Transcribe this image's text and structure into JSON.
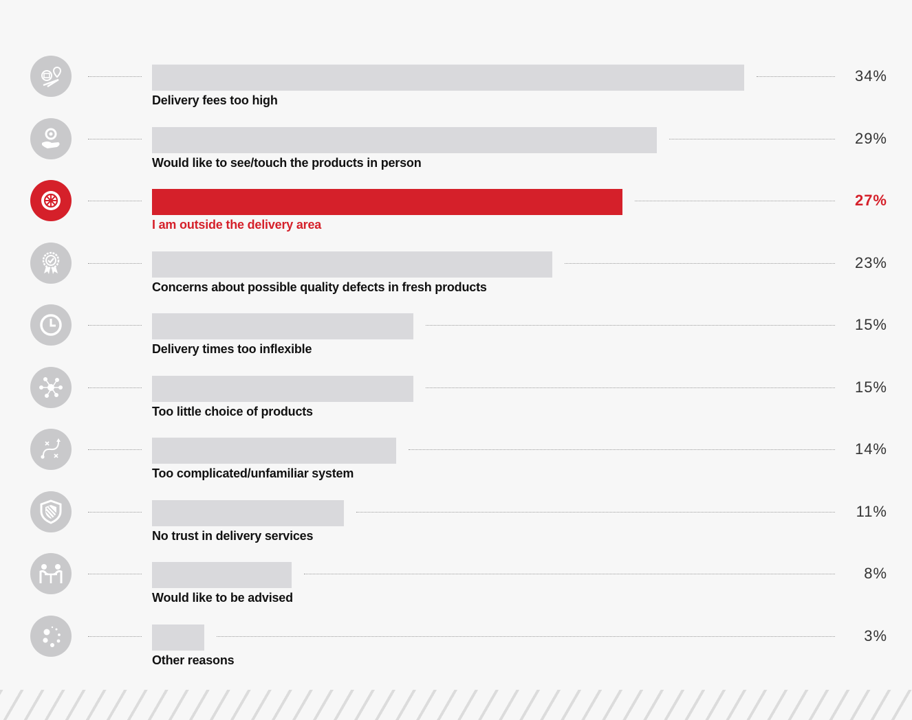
{
  "colors": {
    "bar": "#d9d9dc",
    "highlight": "#d5202a",
    "icon_bg": "#c9c9cb"
  },
  "chart_data": {
    "type": "bar",
    "orientation": "horizontal",
    "value_suffix": "%",
    "xlim": [
      0,
      34
    ],
    "highlight_index": 2,
    "categories": [
      "Delivery fees too high",
      "Would like to see/touch the products in person",
      "I am outside the delivery area",
      "Concerns about possible quality defects in fresh products",
      "Delivery times too inflexible",
      "Too little choice of products",
      "Too complicated/unfamiliar system",
      "No trust in delivery services",
      "Would like to be advised",
      "Other reasons"
    ],
    "values": [
      34,
      29,
      27,
      23,
      15,
      15,
      14,
      11,
      8,
      3
    ],
    "value_labels": [
      "34%",
      "29%",
      "27%",
      "23%",
      "15%",
      "15%",
      "14%",
      "11%",
      "8%",
      "3%"
    ],
    "icons": [
      "delivery-route-icon",
      "see-touch-icon",
      "globe-network-icon",
      "quality-badge-icon",
      "clock-icon",
      "choice-network-icon",
      "strategy-icon",
      "shield-icon",
      "advice-icon",
      "other-dots-icon"
    ]
  }
}
